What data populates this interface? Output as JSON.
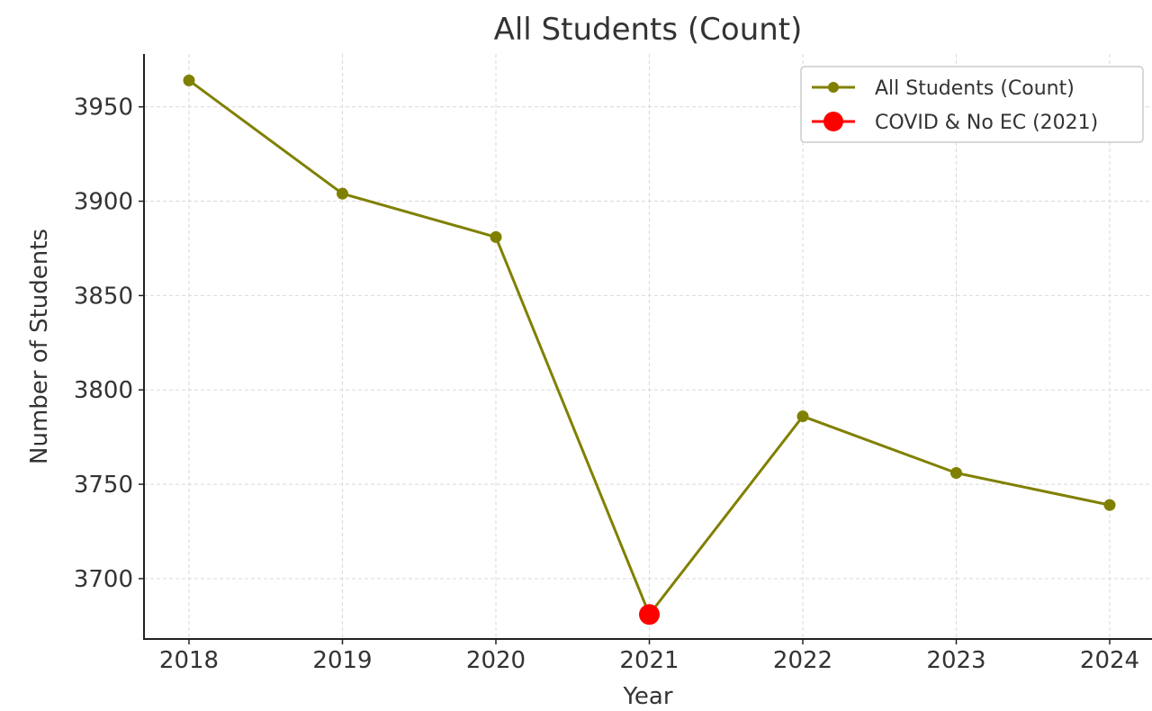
{
  "chart_data": {
    "type": "line",
    "title": "All Students (Count)",
    "xlabel": "Year",
    "ylabel": "Number of Students",
    "categories": [
      "2018",
      "2019",
      "2020",
      "2021",
      "2022",
      "2023",
      "2024"
    ],
    "series": [
      {
        "name": "All Students (Count)",
        "color": "#808000",
        "values": [
          3964,
          3904,
          3881,
          3681,
          3786,
          3756,
          3739
        ]
      }
    ],
    "highlight": {
      "name": "COVID & No EC (2021)",
      "category": "2021",
      "value": 3681,
      "color": "#ff0000"
    },
    "yticks": [
      3700,
      3750,
      3800,
      3850,
      3900,
      3950
    ],
    "ylim": [
      3668,
      3978
    ],
    "grid": true,
    "legend_position": "top-right"
  }
}
